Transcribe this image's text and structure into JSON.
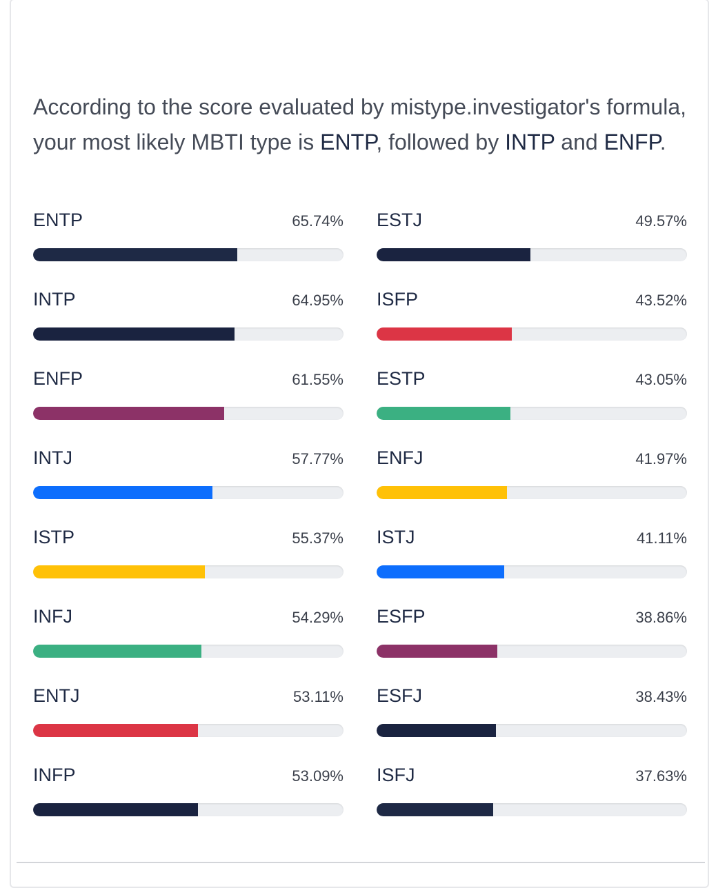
{
  "intro": {
    "before": "According to the score evaluated by mistype.investigator's formula, your most likely MBTI type is ",
    "first": "ENTP",
    "mid1": ", followed by ",
    "second": "INTP",
    "mid2": " and ",
    "third": "ENFP",
    "after": "."
  },
  "colors": {
    "navy": "#1e2945",
    "plum": "#8c3267",
    "blue": "#0d6efd",
    "yellow": "#ffc107",
    "green": "#3bb082",
    "red": "#dc3545",
    "track": "#eceef1"
  },
  "results": {
    "left": [
      {
        "type": "ENTP",
        "percent": "65.74%",
        "value": 65.74,
        "color": "#1e2945"
      },
      {
        "type": "INTP",
        "percent": "64.95%",
        "value": 64.95,
        "color": "#1a2340"
      },
      {
        "type": "ENFP",
        "percent": "61.55%",
        "value": 61.55,
        "color": "#8c3267"
      },
      {
        "type": "INTJ",
        "percent": "57.77%",
        "value": 57.77,
        "color": "#0d6efd"
      },
      {
        "type": "ISTP",
        "percent": "55.37%",
        "value": 55.37,
        "color": "#ffc107"
      },
      {
        "type": "INFJ",
        "percent": "54.29%",
        "value": 54.29,
        "color": "#3bb082"
      },
      {
        "type": "ENTJ",
        "percent": "53.11%",
        "value": 53.11,
        "color": "#dc3545"
      },
      {
        "type": "INFP",
        "percent": "53.09%",
        "value": 53.09,
        "color": "#1a2340"
      }
    ],
    "right": [
      {
        "type": "ESTJ",
        "percent": "49.57%",
        "value": 49.57,
        "color": "#1a2340"
      },
      {
        "type": "ISFP",
        "percent": "43.52%",
        "value": 43.52,
        "color": "#dc3545"
      },
      {
        "type": "ESTP",
        "percent": "43.05%",
        "value": 43.05,
        "color": "#3bb082"
      },
      {
        "type": "ENFJ",
        "percent": "41.97%",
        "value": 41.97,
        "color": "#ffc107"
      },
      {
        "type": "ISTJ",
        "percent": "41.11%",
        "value": 41.11,
        "color": "#0d6efd"
      },
      {
        "type": "ESFP",
        "percent": "38.86%",
        "value": 38.86,
        "color": "#8c3267"
      },
      {
        "type": "ESFJ",
        "percent": "38.43%",
        "value": 38.43,
        "color": "#1a2340"
      },
      {
        "type": "ISFJ",
        "percent": "37.63%",
        "value": 37.63,
        "color": "#1e2945"
      }
    ]
  }
}
